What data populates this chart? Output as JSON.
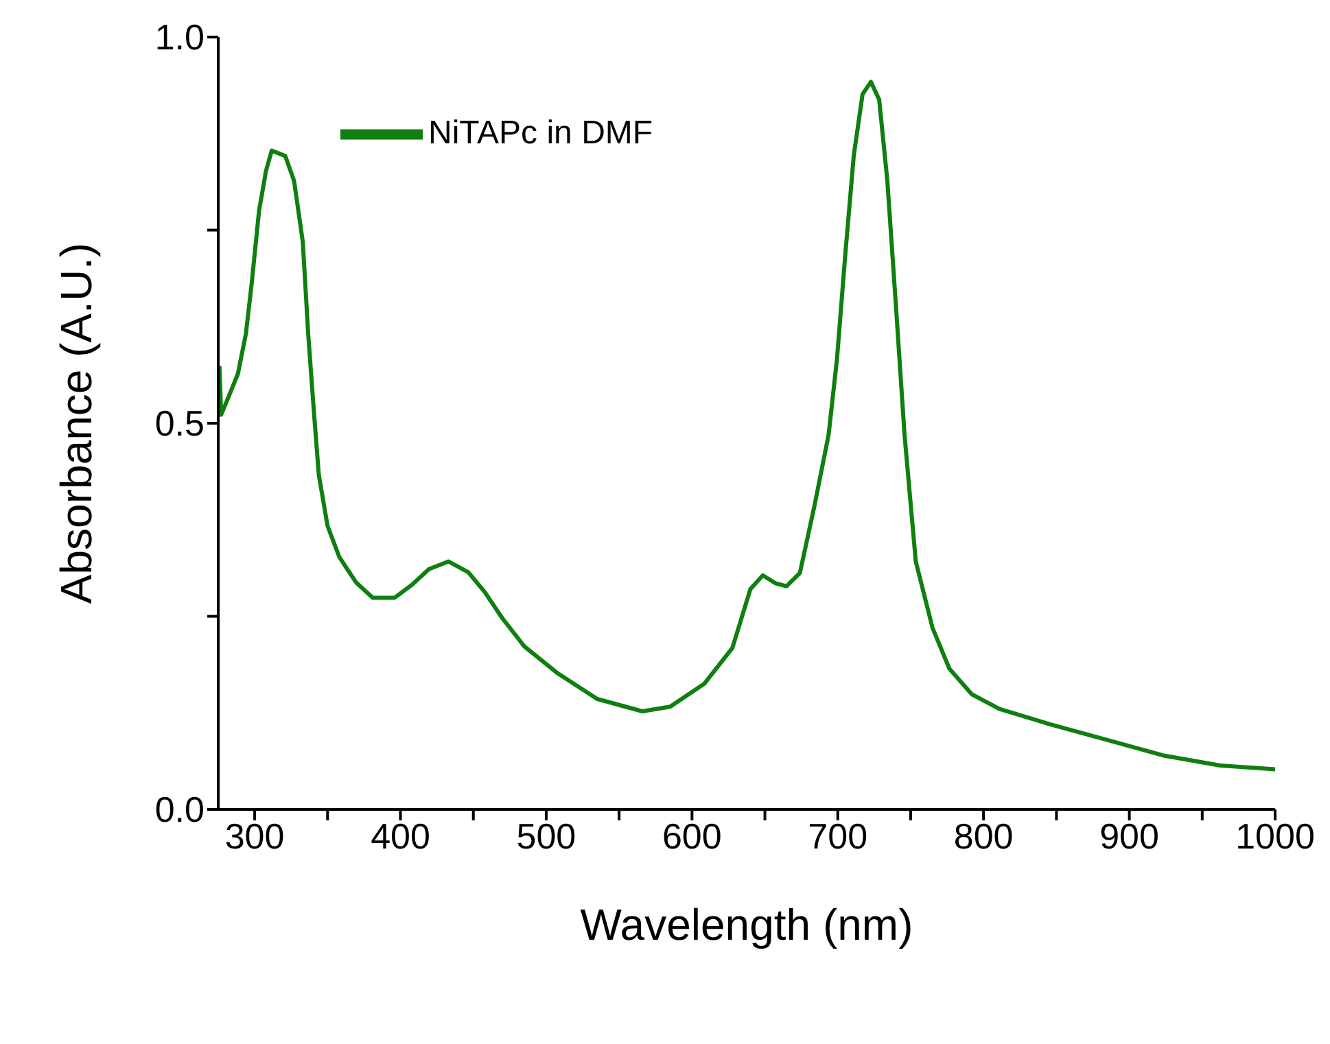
{
  "chart_data": {
    "type": "line",
    "xlabel": "Wavelength (nm)",
    "ylabel": "Absorbance (A.U.)",
    "xlim": [
      275,
      1000
    ],
    "xticks": [
      300,
      {
        "value": 350,
        "label": null
      },
      400,
      {
        "value": 450,
        "label": null
      },
      500,
      {
        "value": 550,
        "label": null
      },
      600,
      {
        "value": 650,
        "label": null
      },
      700,
      {
        "value": 750,
        "label": null
      },
      800,
      {
        "value": 850,
        "label": null
      },
      900,
      {
        "value": 950,
        "label": null
      },
      1000
    ],
    "ylim": [
      0,
      1
    ],
    "yticks": [
      {
        "value": 0,
        "label": "0.0"
      },
      {
        "value": 0.25,
        "label": null
      },
      0.5,
      {
        "value": 0.75,
        "label": null
      },
      {
        "value": 1,
        "label": "1.0"
      }
    ],
    "legend": "top left",
    "marker": "none",
    "line_style": "solid",
    "series": [
      {
        "name": "NiTAPc in DMF",
        "color": "#0f7f0f",
        "x": [
          275.8,
          277,
          282.7,
          288.5,
          294,
          298,
          303,
          307.8,
          311.7,
          321,
          327,
          333,
          336.7,
          340.5,
          344,
          350,
          358,
          369.5,
          381,
          396,
          408,
          419.5,
          433,
          446.6,
          458,
          469.7,
          485,
          508,
          535,
          566,
          585,
          608.6,
          627.7,
          634,
          640,
          648.6,
          657,
          664.8,
          674,
          684,
          693.7,
          699.5,
          705,
          711,
          717,
          722.7,
          728.4,
          734,
          740,
          745.8,
          753.5,
          765,
          776.6,
          792,
          811,
          846,
          884.6,
          923,
          961.7,
          1000
        ],
        "values": [
          0.574,
          0.511,
          0.537,
          0.564,
          0.616,
          0.682,
          0.775,
          0.827,
          0.853,
          0.846,
          0.814,
          0.735,
          0.616,
          0.518,
          0.433,
          0.367,
          0.327,
          0.294,
          0.274,
          0.274,
          0.291,
          0.311,
          0.321,
          0.307,
          0.281,
          0.248,
          0.211,
          0.176,
          0.143,
          0.127,
          0.133,
          0.163,
          0.209,
          0.248,
          0.285,
          0.303,
          0.293,
          0.289,
          0.306,
          0.393,
          0.485,
          0.584,
          0.715,
          0.847,
          0.926,
          0.942,
          0.919,
          0.814,
          0.649,
          0.485,
          0.321,
          0.235,
          0.182,
          0.149,
          0.13,
          0.11,
          0.09,
          0.07,
          0.057,
          0.052
        ]
      }
    ]
  }
}
